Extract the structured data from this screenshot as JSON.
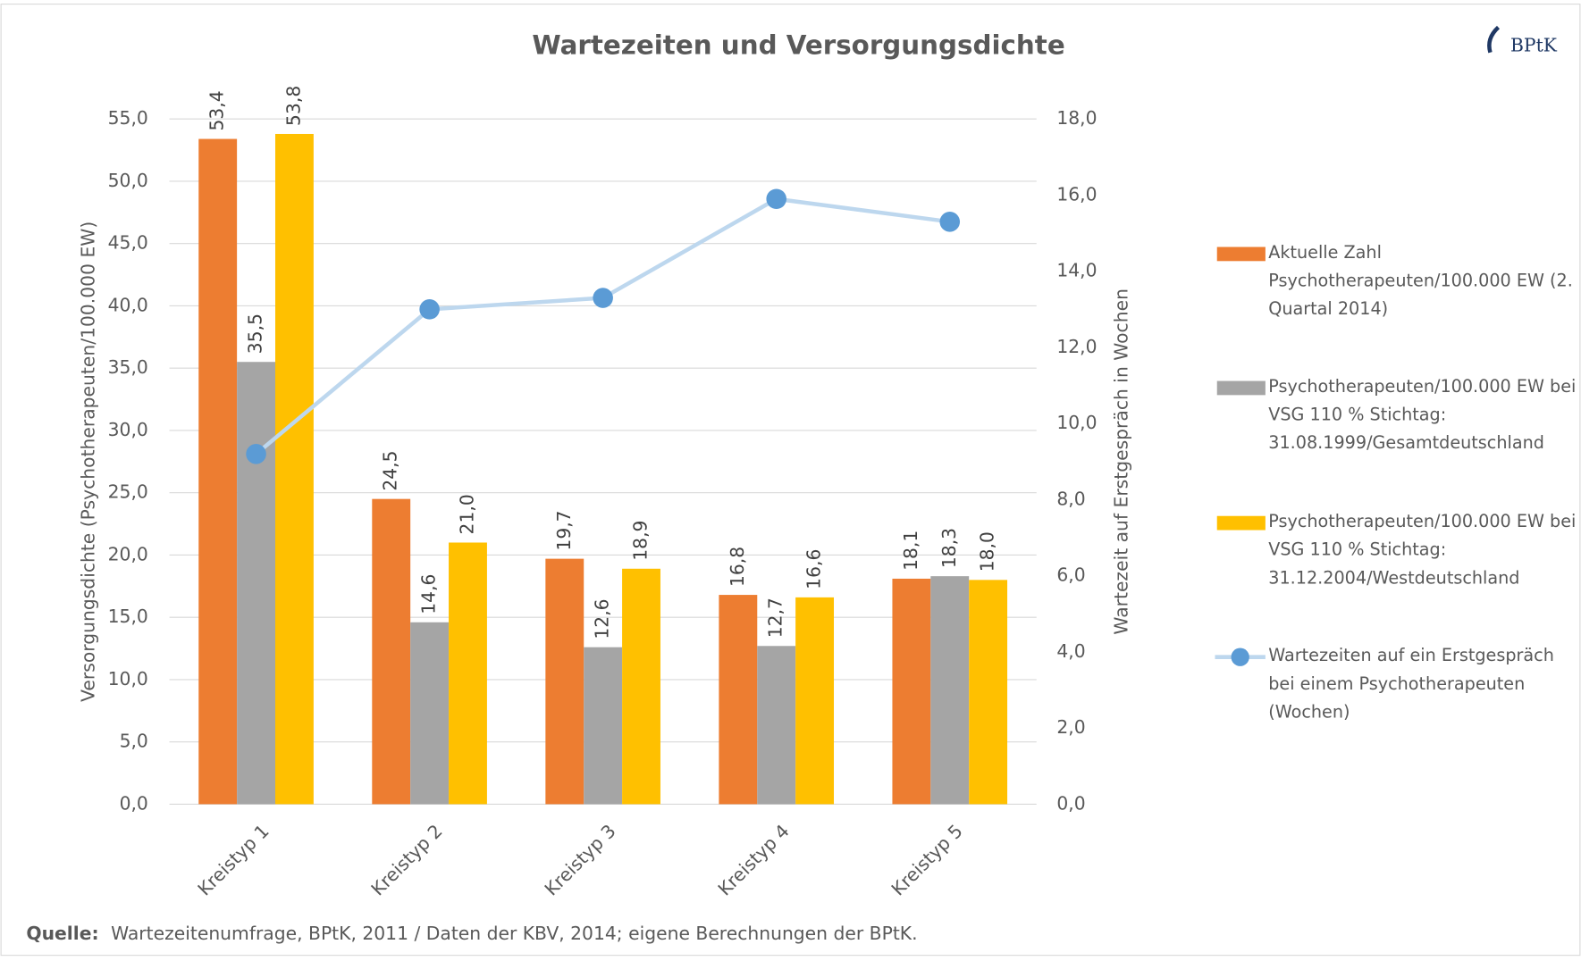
{
  "chart_data": {
    "type": "bar",
    "title": "Wartezeiten und Versorgungsdichte",
    "logo": "BPtK",
    "categories": [
      "Kreistyp 1",
      "Kreistyp 2",
      "Kreistyp 3",
      "Kreistyp 4",
      "Kreistyp 5"
    ],
    "ylabel": "Versorgungsdichte (Psychotherapeuten/100.000 EW)",
    "y2label": "Wartezeit auf Erstgespräch in Wochen",
    "ylim": [
      0,
      55
    ],
    "yticks": [
      {
        "value": 0,
        "label": "0,0"
      },
      {
        "value": 5,
        "label": "5,0"
      },
      {
        "value": 10,
        "label": "10,0"
      },
      {
        "value": 15,
        "label": "15,0"
      },
      {
        "value": 20,
        "label": "20,0"
      },
      {
        "value": 25,
        "label": "25,0"
      },
      {
        "value": 30,
        "label": "30,0"
      },
      {
        "value": 35,
        "label": "35,0"
      },
      {
        "value": 40,
        "label": "40,0"
      },
      {
        "value": 45,
        "label": "45,0"
      },
      {
        "value": 50,
        "label": "50,0"
      },
      {
        "value": 55,
        "label": "55,0"
      }
    ],
    "y2lim": [
      0,
      18
    ],
    "y2ticks": [
      {
        "value": 0,
        "label": "0,0"
      },
      {
        "value": 2,
        "label": "2,0"
      },
      {
        "value": 4,
        "label": "4,0"
      },
      {
        "value": 6,
        "label": "6,0"
      },
      {
        "value": 8,
        "label": "8,0"
      },
      {
        "value": 10,
        "label": "10,0"
      },
      {
        "value": 12,
        "label": "12,0"
      },
      {
        "value": 14,
        "label": "14,0"
      },
      {
        "value": 16,
        "label": "16,0"
      },
      {
        "value": 18,
        "label": "18,0"
      }
    ],
    "grid": true,
    "legend": "right",
    "series": [
      {
        "name": "Aktuelle Zahl Psychotherapeuten/100.000 EW (2. Quartal 2014)",
        "color": "#ed7d31",
        "type": "bar",
        "values": [
          53.4,
          24.5,
          19.7,
          16.8,
          18.1
        ],
        "value_labels": [
          "53,4",
          "24,5",
          "19,7",
          "16,8",
          "18,1"
        ]
      },
      {
        "name": "Psychotherapeuten/100.000 EW bei VSG 110 % Stichtag: 31.08.1999/Gesamtdeutschland",
        "color": "#a5a5a5",
        "type": "bar",
        "values": [
          35.5,
          14.6,
          12.6,
          12.7,
          18.3
        ],
        "value_labels": [
          "35,5",
          "14,6",
          "12,6",
          "12,7",
          "18,3"
        ]
      },
      {
        "name": "Psychotherapeuten/100.000 EW bei VSG 110 % Stichtag: 31.12.2004/Westdeutschland",
        "color": "#ffc000",
        "type": "bar",
        "values": [
          53.8,
          21.0,
          18.9,
          16.6,
          18.0
        ],
        "value_labels": [
          "53,8",
          "21,0",
          "18,9",
          "16,6",
          "18,0"
        ]
      },
      {
        "name": "Wartezeiten auf ein Erstgespräch bei einem Psychotherapeuten (Wochen)",
        "color": "#5b9bd5",
        "type": "line",
        "axis": "y2",
        "values": [
          9.2,
          13.0,
          13.3,
          15.9,
          15.3
        ]
      }
    ],
    "source_label": "Quelle:",
    "source": "Wartezeitenumfrage, BPtK, 2011 / Daten der KBV, 2014; eigene Berechnungen der BPtK."
  }
}
